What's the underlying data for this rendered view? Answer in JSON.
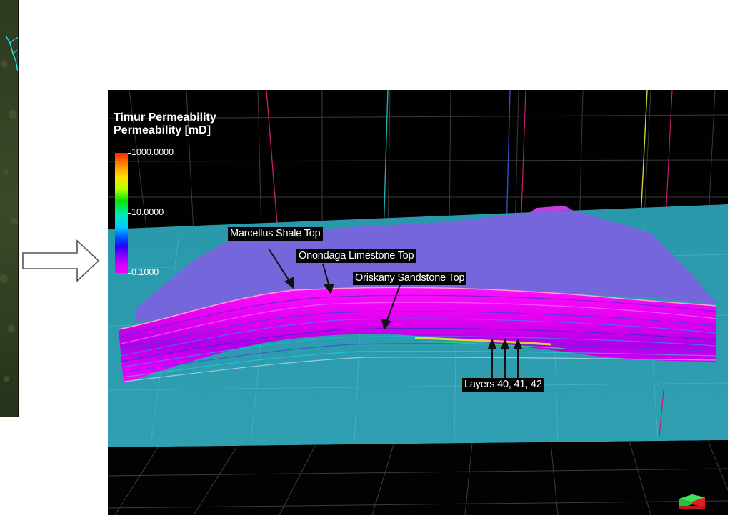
{
  "legend": {
    "title": "Timur Permeability",
    "subtitle": "Permeability [mD]",
    "ticks": [
      {
        "label": "1000.0000",
        "value": 1000
      },
      {
        "label": "10.0000",
        "value": 10
      },
      {
        "label": "0.1000",
        "value": 0.1
      }
    ],
    "scale": "log",
    "range": [
      0.1,
      1000
    ]
  },
  "callouts": {
    "marcellus": "Marcellus Shale Top",
    "onondaga": "Onondaga Limestone Top",
    "oriskany": "Oriskany Sandstone Top",
    "layers": "Layers 40, 41, 42"
  },
  "colors": {
    "background": "#010101",
    "plane": "#2fa3b5",
    "top_surface": "#7566dc",
    "high_perm_band": "#ff00ff",
    "legend_text": "#ffffff"
  },
  "icons": {
    "arrow": "outline-right-arrow-icon",
    "orientation": "orientation-cube-icon"
  }
}
